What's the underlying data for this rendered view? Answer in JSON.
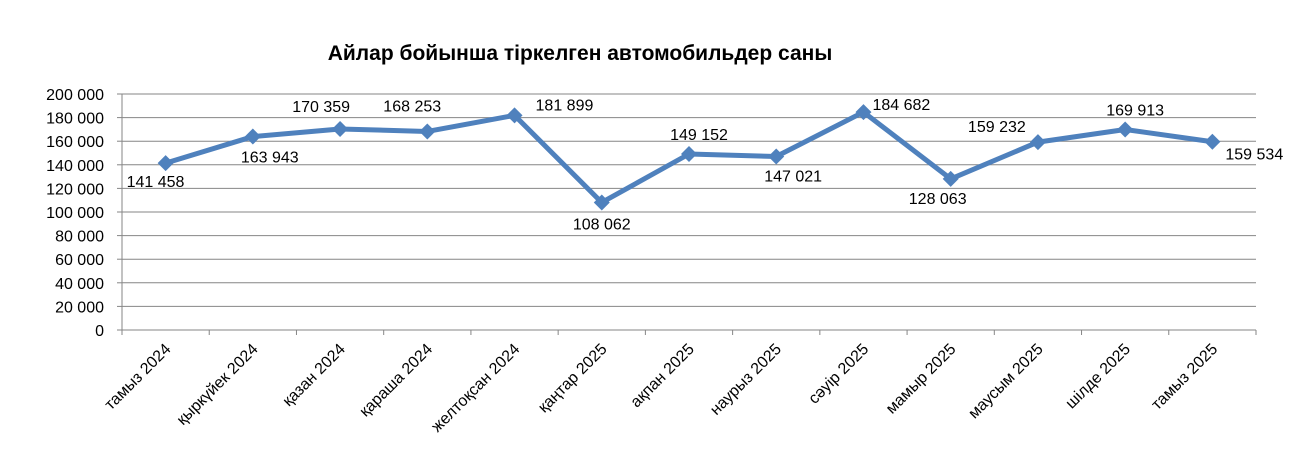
{
  "chart_data": {
    "type": "line",
    "title": "Айлар бойынша тіркелген автомобильдер саны",
    "categories": [
      "тамыз 2024",
      "қыркүйек 2024",
      "қазан 2024",
      "қараша 2024",
      "желтоқсан 2024",
      "қаңтар 2025",
      "ақпан 2025",
      "наурыз 2025",
      "сәуір 2025",
      "мамыр 2025",
      "маусым 2025",
      "шілде 2025",
      "тамыз 2025"
    ],
    "values": [
      141458,
      163943,
      170359,
      168253,
      181899,
      108062,
      149152,
      147021,
      184682,
      128063,
      159232,
      169913,
      159534
    ],
    "data_labels": [
      "141 458",
      "163 943",
      "170 359",
      "168 253",
      "181 899",
      "108 062",
      "149 152",
      "147 021",
      "184 682",
      "128 063",
      "159 232",
      "169 913",
      "159 534"
    ],
    "y_tick_labels": [
      "0",
      "20 000",
      "40 000",
      "60 000",
      "80 000",
      "100 000",
      "120 000",
      "140 000",
      "160 000",
      "180 000",
      "200 000"
    ],
    "ylim": [
      0,
      200000
    ],
    "grid": true,
    "legend": "none",
    "line_color": "#4F81BD",
    "marker": "diamond"
  }
}
